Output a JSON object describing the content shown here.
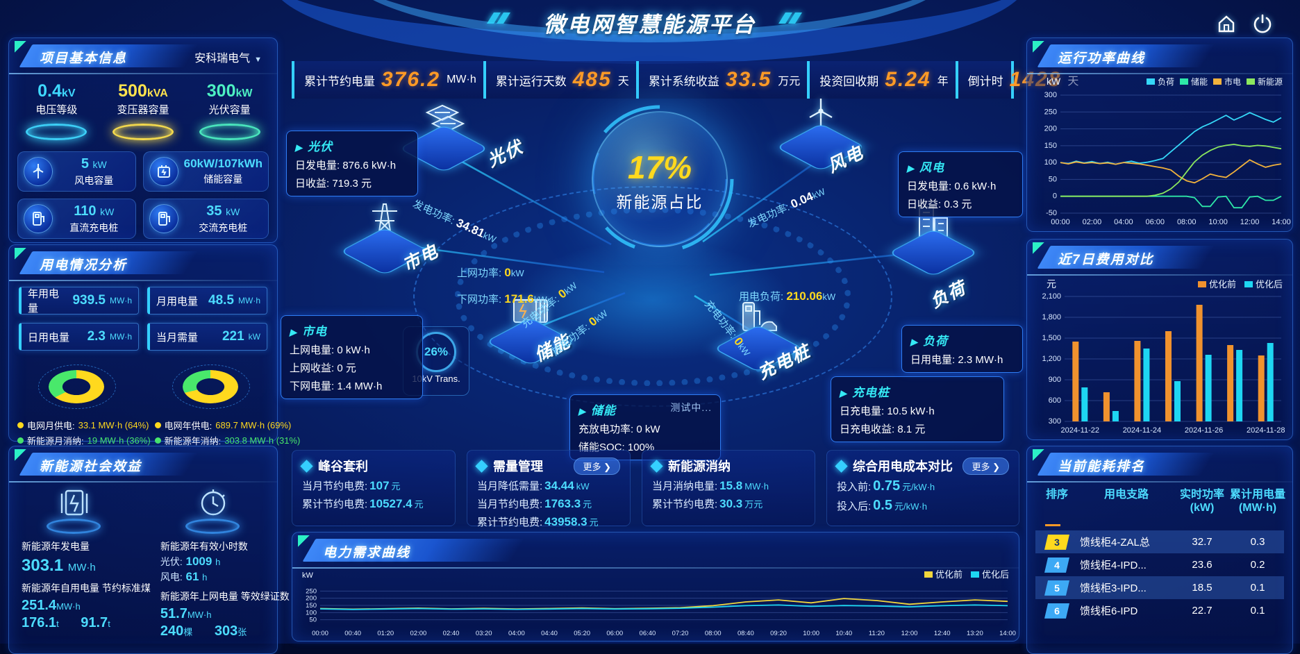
{
  "header": {
    "title": "微电网智慧能源平台"
  },
  "topStats": [
    {
      "label": "累计节约电量",
      "value": "376.2",
      "unit": "MW·h"
    },
    {
      "label": "累计运行天数",
      "value": "485",
      "unit": "天"
    },
    {
      "label": "累计系统收益",
      "value": "33.5",
      "unit": "万元"
    },
    {
      "label": "投资回收期",
      "value": "5.24",
      "unit": "年"
    },
    {
      "label": "倒计时",
      "value": "1428",
      "unit": "天"
    }
  ],
  "left": {
    "panel1": {
      "title": "项目基本信息",
      "dropdown": "安科瑞电气",
      "podiums": [
        {
          "value": "0.4",
          "unit": "kV",
          "label": "电压等级"
        },
        {
          "value": "500",
          "unit": "kVA",
          "label": "变压器容量"
        },
        {
          "value": "300",
          "unit": "kW",
          "label": "光伏容量"
        }
      ],
      "cards": [
        {
          "value": "5",
          "unit": "kW",
          "label": "风电容量"
        },
        {
          "value": "60kW/107kWh",
          "unit": "",
          "label": "储能容量"
        },
        {
          "value": "110",
          "unit": "kW",
          "label": "直流充电桩"
        },
        {
          "value": "35",
          "unit": "kW",
          "label": "交流充电桩"
        }
      ]
    },
    "panel2": {
      "title": "用电情况分析",
      "cards": [
        {
          "label": "年用电量",
          "value": "939.5",
          "unit": "MW·h"
        },
        {
          "label": "月用电量",
          "value": "48.5",
          "unit": "MW·h"
        },
        {
          "label": "日用电量",
          "value": "2.3",
          "unit": "MW·h"
        },
        {
          "label": "当月需量",
          "value": "221",
          "unit": "kW"
        }
      ],
      "donuts": [
        {
          "pct": 64,
          "legend": [
            {
              "label": "电网月供电:",
              "value": "33.1 MW·h (64%)"
            },
            {
              "label": "新能源月消纳:",
              "value": "19 MW·h (36%)"
            }
          ]
        },
        {
          "pct": 69,
          "legend": [
            {
              "label": "电网年供电:",
              "value": "689.7 MW·h (69%)"
            },
            {
              "label": "新能源年消纳:",
              "value": "303.8 MW·h (31%)"
            }
          ]
        }
      ]
    },
    "panel3": {
      "title": "新能源社会效益",
      "gen": {
        "label": "新能源年发电量",
        "value": "303.1",
        "unit": "MW·h"
      },
      "hours": {
        "label": "新能源年有效小时数",
        "pv_k": "光伏:",
        "pv_v": "1009",
        "pv_u": "h",
        "wind_k": "风电:",
        "wind_v": "61",
        "wind_u": "h"
      },
      "row2a": {
        "label": "新能源年自用电量 节约标准煤",
        "v1": "251.4",
        "u1": "MW·h",
        "v2": "176.1",
        "u2": "t",
        "v3": "91.7",
        "u3": "t"
      },
      "row2b": {
        "label": "新能源年上网电量 等效绿证数",
        "v1": "51.7",
        "u1": "MW·h",
        "v2": "240",
        "u2": "棵",
        "v3": "303",
        "u3": "张"
      }
    }
  },
  "center": {
    "gauge": {
      "value": "17%",
      "label": "新能源占比"
    },
    "transformer": {
      "pct": "26%",
      "label": "10kV Trans."
    },
    "nodes": {
      "pv": "光伏",
      "wind": "风电",
      "grid": "市电",
      "load": "负荷",
      "storage": "储能",
      "charger": "充电桩"
    },
    "flows": {
      "pv": {
        "k": "发电功率:",
        "v": "34.81",
        "u": "kW"
      },
      "wind": {
        "k": "发电功率:",
        "v": "0.04",
        "u": "kW"
      },
      "grid_up": {
        "k": "上网功率:",
        "v": "0",
        "u": "kW"
      },
      "grid_down": {
        "k": "下网功率:",
        "v": "171.6",
        "u": "kW"
      },
      "st_charge": {
        "k": "充电功率:",
        "v": "0",
        "u": "kW"
      },
      "st_discharge": {
        "k": "放电功率:",
        "v": "0",
        "u": "kW"
      },
      "load": {
        "k": "用电负荷:",
        "v": "210.06",
        "u": "kW"
      },
      "charger": {
        "k": "充电功率:",
        "v": "0",
        "u": "kW"
      }
    },
    "tooltips": {
      "pv": {
        "title": "光伏",
        "l1k": "日发电量:",
        "l1v": "876.6 kW·h",
        "l2k": "日收益:",
        "l2v": "719.3 元"
      },
      "grid": {
        "title": "市电",
        "l1k": "上网电量:",
        "l1v": "0 kW·h",
        "l2k": "上网收益:",
        "l2v": "0 元",
        "l3k": "下网电量:",
        "l3v": "1.4 MW·h"
      },
      "storage": {
        "title": "储能",
        "tag": "测试中...",
        "l1k": "充放电功率:",
        "l1v": "0 kW",
        "l2k": "储能SOC:",
        "l2v": "100%"
      },
      "wind": {
        "title": "风电",
        "l1k": "日发电量:",
        "l1v": "0.6 kW·h",
        "l2k": "日收益:",
        "l2v": "0.3 元"
      },
      "load": {
        "title": "负荷",
        "l1k": "日用电量:",
        "l1v": "2.3 MW·h"
      },
      "charger": {
        "title": "充电桩",
        "l1k": "日充电量:",
        "l1v": "10.5 kW·h",
        "l2k": "日充电收益:",
        "l2v": "8.1 元"
      }
    }
  },
  "bottomCards": [
    {
      "title": "峰谷套利",
      "more": "",
      "lines": [
        {
          "k": "当月节约电费:",
          "v": "107",
          "u": "元"
        },
        {
          "k": "累计节约电费:",
          "v": "10527.4",
          "u": "元"
        }
      ]
    },
    {
      "title": "需量管理",
      "more": "更多 ❯",
      "lines": [
        {
          "k": "当月降低需量:",
          "v": "34.44",
          "u": "kW"
        },
        {
          "k": "当月节约电费:",
          "v": "1763.3",
          "u": "元"
        },
        {
          "k": "累计节约电费:",
          "v": "43958.3",
          "u": "元"
        }
      ]
    },
    {
      "title": "新能源消纳",
      "more": "",
      "lines": [
        {
          "k": "当月消纳电量:",
          "v": "15.8",
          "u": "MW·h"
        },
        {
          "k": "累计节约电费:",
          "v": "30.3",
          "u": "万元"
        }
      ]
    },
    {
      "title": "综合用电成本对比",
      "more": "更多 ❯",
      "lines": [
        {
          "k": "投入前:",
          "v": "0.75",
          "u": "元/kW·h"
        },
        {
          "k": "投入后:",
          "v": "0.5",
          "u": "元/kW·h"
        }
      ]
    }
  ],
  "right": {
    "panel1": {
      "title": "运行功率曲线"
    },
    "panel2": {
      "title": "近7日费用对比"
    },
    "panel3": {
      "title": "当前能耗排名",
      "table": {
        "h": [
          {
            "t": "排序",
            "s": ""
          },
          {
            "t": "用电支路",
            "s": ""
          },
          {
            "t": "实时功率",
            "s": "(kW)"
          },
          {
            "t": "累计用电量",
            "s": "(MW·h)"
          }
        ],
        "rows": [
          {
            "rank": "3",
            "branch": "馈线柜4-ZAL总",
            "power": "32.7",
            "energy": "0.3"
          },
          {
            "rank": "4",
            "branch": "馈线柜4-IPD...",
            "power": "23.6",
            "energy": "0.2"
          },
          {
            "rank": "5",
            "branch": "馈线柜3-IPD...",
            "power": "18.5",
            "energy": "0.1"
          },
          {
            "rank": "6",
            "branch": "馈线柜6-IPD",
            "power": "22.7",
            "energy": "0.1"
          }
        ]
      }
    }
  },
  "bottomChart": {
    "title": "电力需求曲线"
  },
  "chart_data": [
    {
      "type": "line",
      "title": "运行功率曲线",
      "ylabel": "kW",
      "ylim": [
        -50,
        300
      ],
      "yticks": [
        -50,
        0,
        50,
        100,
        150,
        200,
        250,
        300
      ],
      "ytick_labels": [
        "-50",
        "0",
        "50",
        "100",
        "150",
        "200",
        "250",
        "300"
      ],
      "x_ticks": [
        "00:00",
        "02:00",
        "04:00",
        "06:00",
        "08:00",
        "10:00",
        "12:00",
        "14:00"
      ],
      "legend_position": "top-right",
      "grid": true,
      "series": [
        {
          "name": "负荷",
          "color": "#35d8f8",
          "values": [
            100,
            97,
            104,
            99,
            103,
            97,
            101,
            95,
            100,
            104,
            98,
            101,
            106,
            112,
            132,
            152,
            172,
            192,
            206,
            216,
            228,
            240,
            226,
            236,
            248,
            238,
            228,
            220,
            233
          ]
        },
        {
          "name": "储能",
          "color": "#2ee8a8",
          "values": [
            0,
            0,
            0,
            0,
            0,
            0,
            0,
            0,
            0,
            0,
            0,
            0,
            0,
            0,
            0,
            0,
            0,
            -4,
            -30,
            -30,
            -2,
            0,
            -34,
            -34,
            -2,
            0,
            -12,
            -12,
            0
          ]
        },
        {
          "name": "市电",
          "color": "#f2b23c",
          "values": [
            100,
            96,
            102,
            98,
            100,
            97,
            99,
            95,
            100,
            98,
            96,
            92,
            88,
            84,
            78,
            60,
            46,
            40,
            52,
            66,
            60,
            56,
            72,
            90,
            108,
            96,
            86,
            92,
            96
          ]
        },
        {
          "name": "新能源",
          "color": "#8ce85e",
          "values": [
            0,
            0,
            0,
            0,
            0,
            0,
            0,
            0,
            0,
            0,
            0,
            0,
            3,
            9,
            22,
            42,
            72,
            102,
            122,
            136,
            146,
            151,
            154,
            150,
            148,
            151,
            149,
            145,
            141
          ]
        }
      ]
    },
    {
      "type": "bar",
      "title": "近7日费用对比",
      "ylabel": "元",
      "ylim": [
        300,
        2100
      ],
      "yticks": [
        300,
        600,
        900,
        1200,
        1500,
        1800,
        2100
      ],
      "ytick_labels": [
        "300",
        "600",
        "900",
        "1,200",
        "1,500",
        "1,800",
        "2,100"
      ],
      "categories": [
        "2024-11-22",
        "2024-11-23",
        "2024-11-24",
        "2024-11-25",
        "2024-11-26",
        "2024-11-27",
        "2024-11-28"
      ],
      "x_ticks_shown": [
        "2024-11-22",
        "2024-11-24",
        "2024-11-26",
        "2024-11-28"
      ],
      "x_tick_idx": [
        0,
        2,
        4,
        6
      ],
      "legend_position": "top-right",
      "grid": true,
      "series": [
        {
          "name": "优化前",
          "color": "#f0922e",
          "values": [
            1450,
            720,
            1460,
            1600,
            1980,
            1400,
            1250
          ]
        },
        {
          "name": "优化后",
          "color": "#1ed6f2",
          "values": [
            790,
            450,
            1350,
            880,
            1260,
            1330,
            1430
          ]
        }
      ]
    },
    {
      "type": "line",
      "title": "电力需求曲线",
      "ylabel": "kW",
      "ylim": [
        0,
        300
      ],
      "yticks": [
        50,
        100,
        150,
        200,
        250
      ],
      "ytick_labels": [
        "50",
        "100",
        "150",
        "200",
        "250"
      ],
      "x_ticks": [
        "00:00",
        "00:40",
        "01:20",
        "02:00",
        "02:40",
        "03:20",
        "04:00",
        "04:40",
        "05:20",
        "06:00",
        "06:40",
        "07:20",
        "08:00",
        "08:40",
        "09:20",
        "10:00",
        "10:40",
        "11:20",
        "12:00",
        "12:40",
        "13:20",
        "14:00"
      ],
      "legend_position": "top-right",
      "grid": true,
      "series": [
        {
          "name": "优化前",
          "color": "#f2d63c",
          "values": [
            128,
            124,
            127,
            131,
            126,
            129,
            125,
            128,
            132,
            127,
            130,
            134,
            148,
            174,
            188,
            168,
            198,
            184,
            158,
            174,
            188,
            178
          ]
        },
        {
          "name": "优化后",
          "color": "#1ed6f2",
          "values": [
            126,
            122,
            125,
            128,
            124,
            126,
            123,
            125,
            128,
            125,
            127,
            130,
            138,
            148,
            153,
            143,
            149,
            146,
            140,
            148,
            153,
            148
          ]
        }
      ]
    }
  ]
}
